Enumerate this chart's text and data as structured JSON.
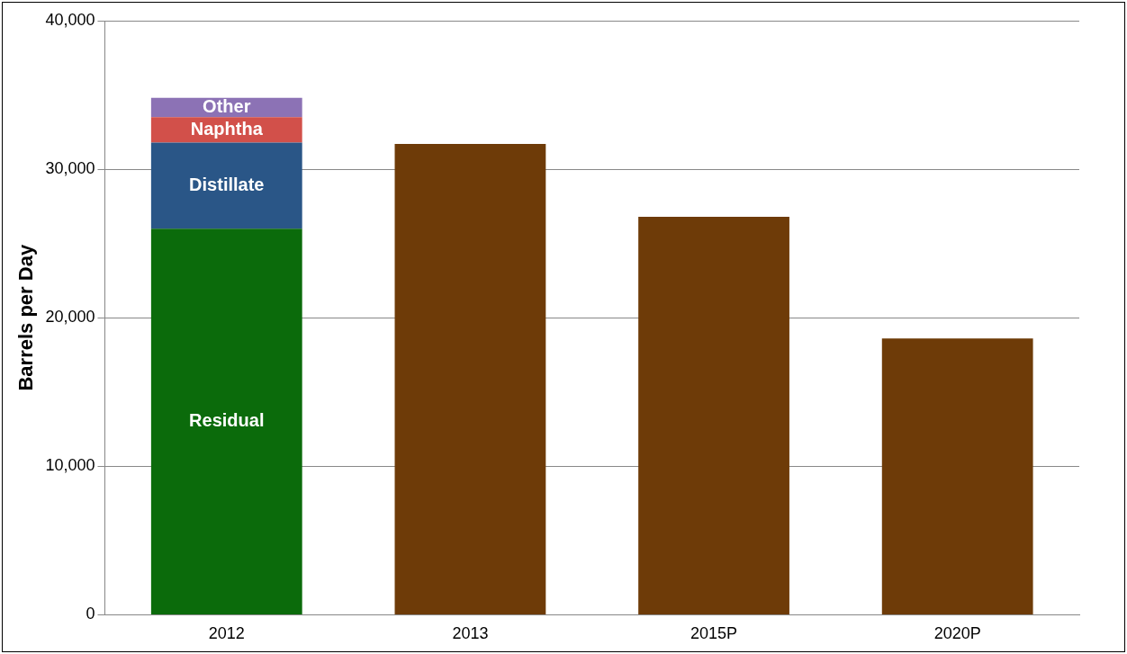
{
  "chart_data": {
    "type": "bar",
    "stacked": true,
    "ylabel": "Barrels per Day",
    "categories": [
      "2012",
      "2013",
      "2015P",
      "2020P"
    ],
    "series": [
      {
        "name": "Residual",
        "color": "#0b6b0b",
        "values": [
          26000,
          null,
          null,
          null
        ]
      },
      {
        "name": "Distillate",
        "color": "#2a5687",
        "values": [
          5800,
          null,
          null,
          null
        ]
      },
      {
        "name": "Naphtha",
        "color": "#d2504a",
        "values": [
          1700,
          null,
          null,
          null
        ]
      },
      {
        "name": "Other",
        "color": "#8c72b5",
        "values": [
          1300,
          null,
          null,
          null
        ]
      },
      {
        "color": "#6e3b08",
        "values": [
          null,
          31700,
          26800,
          18600
        ]
      }
    ],
    "ylim": [
      0,
      40000
    ],
    "yticks": [
      {
        "value": 0,
        "label": "0"
      },
      {
        "value": 10000,
        "label": "10,000"
      },
      {
        "value": 20000,
        "label": "20,000"
      },
      {
        "value": 30000,
        "label": "30,000"
      },
      {
        "value": 40000,
        "label": "40,000"
      }
    ],
    "grid": "y",
    "legend": false
  }
}
